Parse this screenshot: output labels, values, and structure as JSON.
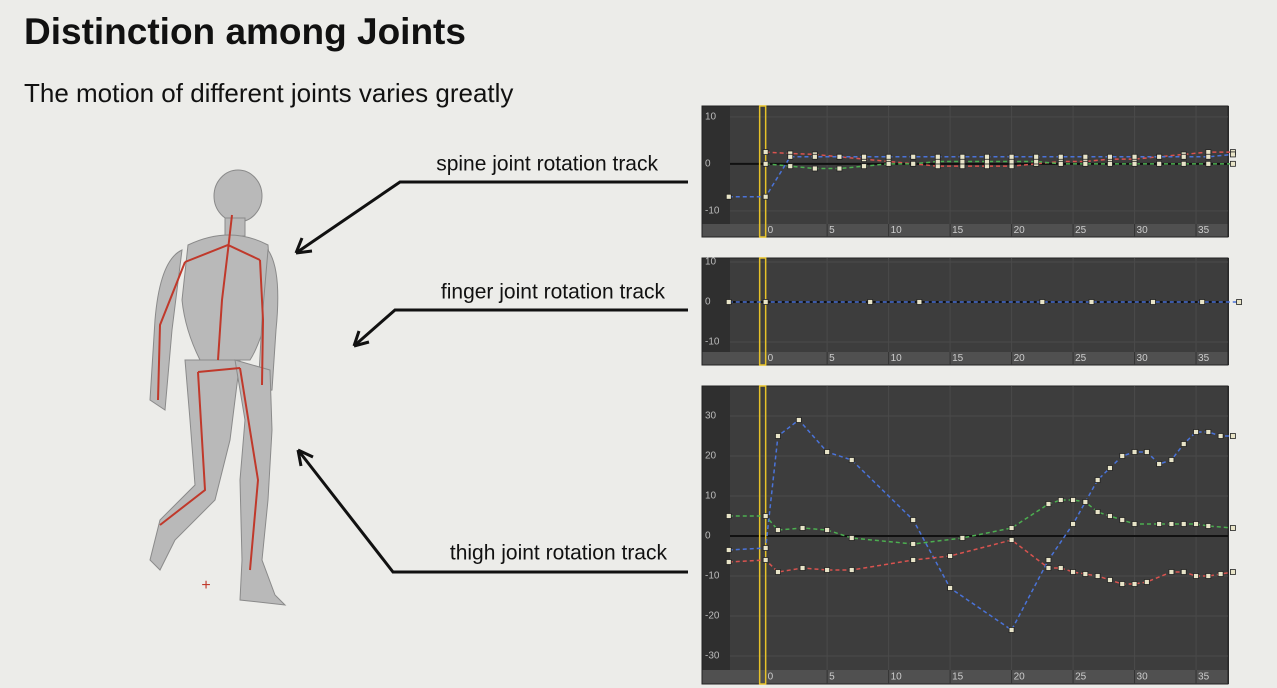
{
  "title": "Distinction among Joints",
  "subtitle": "The motion of different joints varies greatly",
  "labels": [
    "spine joint rotation track",
    "finger joint rotation track",
    "thigh joint rotation track"
  ],
  "chart_data": [
    {
      "type": "line",
      "xlim": [
        -2.9,
        37.6
      ],
      "ylim": [
        -12.8,
        12.3
      ],
      "xticks": [
        0,
        5,
        10,
        15,
        20,
        25,
        30,
        35
      ],
      "yticks": [
        10,
        0,
        -10
      ],
      "series": [
        {
          "color": "#d9534f",
          "x": [
            0,
            2,
            4,
            6,
            8,
            10,
            12,
            14,
            16,
            18,
            20,
            22,
            24,
            26,
            28,
            30,
            32,
            34,
            36,
            38
          ],
          "values": [
            2.5,
            2.2,
            2,
            1.5,
            1,
            0.5,
            0,
            -0.5,
            -0.5,
            -0.5,
            -0.5,
            0,
            0.5,
            0.5,
            1,
            1,
            1.5,
            2,
            2.5,
            2.5
          ]
        },
        {
          "color": "#4caf50",
          "x": [
            0,
            2,
            4,
            6,
            8,
            10,
            12,
            14,
            16,
            18,
            20,
            22,
            24,
            26,
            28,
            30,
            32,
            34,
            36,
            38
          ],
          "values": [
            0,
            -0.5,
            -1,
            -1,
            -0.5,
            0,
            0,
            0.5,
            0.5,
            0.5,
            0.5,
            0.5,
            0,
            0,
            0,
            0,
            0,
            0,
            0,
            0
          ]
        },
        {
          "color": "#4a73d9",
          "x": [
            -3,
            0,
            2,
            4,
            6,
            8,
            10,
            12,
            14,
            16,
            18,
            20,
            22,
            24,
            26,
            28,
            30,
            32,
            34,
            36,
            38
          ],
          "values": [
            -7,
            -7,
            1.5,
            1.5,
            1.5,
            1.5,
            1.5,
            1.5,
            1.5,
            1.5,
            1.5,
            1.5,
            1.5,
            1.5,
            1.5,
            1.5,
            1.5,
            1.5,
            1.5,
            1.5,
            2
          ]
        }
      ]
    },
    {
      "type": "line",
      "xlim": [
        -2.9,
        37.6
      ],
      "ylim": [
        -12.5,
        11
      ],
      "xticks": [
        0,
        5,
        10,
        15,
        20,
        25,
        30,
        35
      ],
      "yticks": [
        10,
        0,
        -10
      ],
      "series": [
        {
          "color": "#4a73d9",
          "x": [
            -3,
            0,
            8.5,
            12.5,
            22.5,
            26.5,
            31.5,
            35.5,
            38.5
          ],
          "values": [
            0,
            0,
            0,
            0,
            0,
            0,
            0,
            0,
            0
          ]
        }
      ]
    },
    {
      "type": "line",
      "xlim": [
        -2.9,
        37.6
      ],
      "ylim": [
        -33.5,
        37.5
      ],
      "xticks": [
        0,
        5,
        10,
        15,
        20,
        25,
        30,
        35
      ],
      "yticks": [
        30,
        20,
        10,
        0,
        -10,
        -20,
        -30
      ],
      "series": [
        {
          "color": "#4a73d9",
          "x": [
            -3,
            0,
            1,
            2.7,
            5,
            7,
            12,
            15,
            20,
            23,
            25,
            27,
            28,
            29,
            30,
            31,
            32,
            33,
            34,
            35,
            36,
            37,
            38
          ],
          "values": [
            -3.5,
            -3,
            25,
            29,
            21,
            19,
            4,
            -13,
            -23.5,
            -6,
            3,
            14,
            17,
            20,
            21,
            21,
            18,
            19,
            23,
            26,
            26,
            25,
            25
          ]
        },
        {
          "color": "#4caf50",
          "x": [
            -3,
            0,
            1,
            3,
            5,
            7,
            12,
            16,
            20,
            23,
            24,
            25,
            26,
            27,
            28,
            29,
            30,
            32,
            33,
            34,
            35,
            36,
            38
          ],
          "values": [
            5,
            5,
            1.5,
            2,
            1.5,
            -0.5,
            -2,
            -0.5,
            2,
            8,
            9,
            9,
            8.5,
            6,
            5,
            4,
            3,
            3,
            3,
            3,
            3,
            2.5,
            2
          ]
        },
        {
          "color": "#d9534f",
          "x": [
            -3,
            0,
            1,
            3,
            5,
            7,
            12,
            15,
            20,
            23,
            24,
            25,
            26,
            27,
            28,
            29,
            30,
            31,
            33,
            34,
            35,
            36,
            37,
            38
          ],
          "values": [
            -6.5,
            -6,
            -9,
            -8,
            -8.5,
            -8.5,
            -6,
            -5,
            -1,
            -8,
            -8,
            -9,
            -9.5,
            -10,
            -11,
            -12,
            -12,
            -11.5,
            -9,
            -9,
            -10,
            -10,
            -9.5,
            -9
          ]
        }
      ]
    }
  ]
}
